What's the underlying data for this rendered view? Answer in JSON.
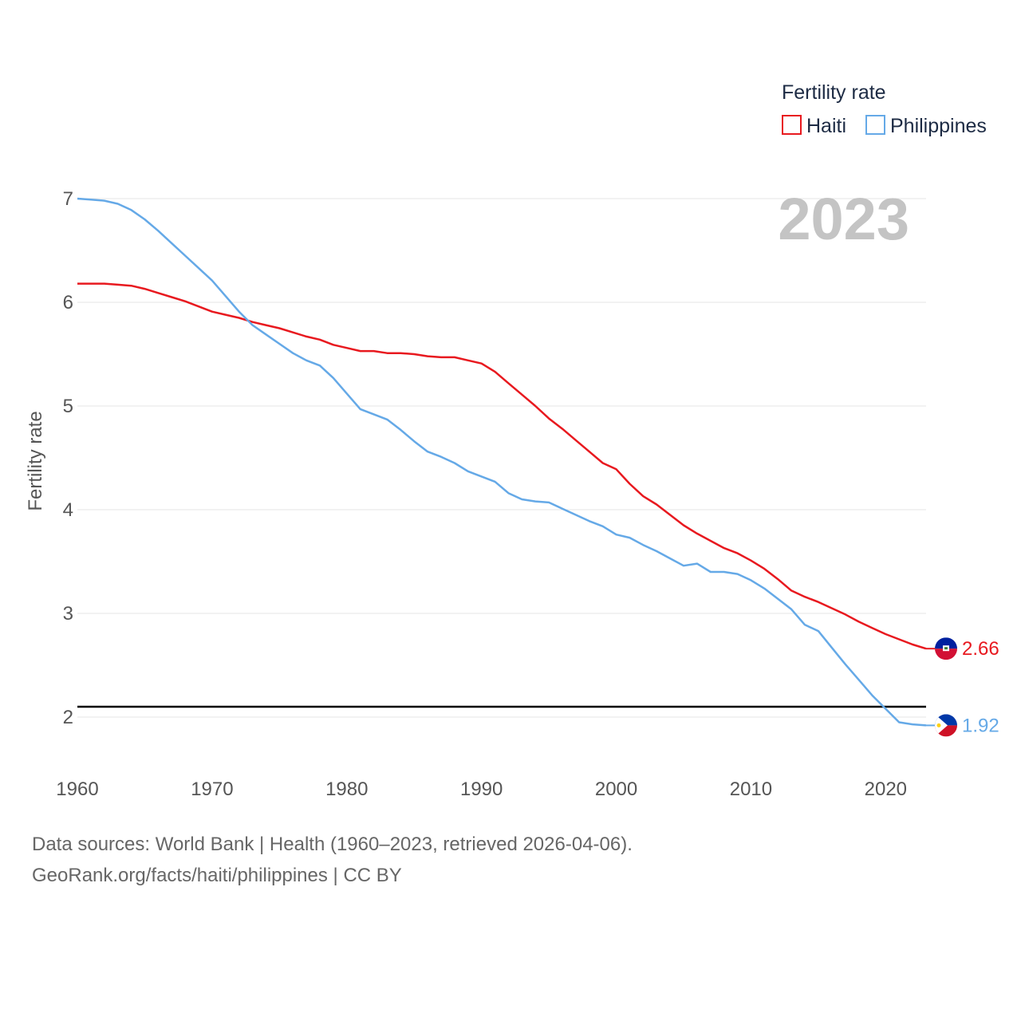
{
  "chart_data": {
    "type": "line",
    "title": "",
    "xlabel": "",
    "ylabel": "Fertility rate",
    "xlim": [
      1960,
      2023
    ],
    "ylim": [
      1.6,
      7.0
    ],
    "xticks": [
      1960,
      1970,
      1980,
      1990,
      2000,
      2010,
      2020
    ],
    "yticks": [
      2,
      3,
      4,
      5,
      6,
      7
    ],
    "grid": true,
    "legend": {
      "title": "Fertility rate",
      "position": "top-right"
    },
    "year_label": "2023",
    "reference_line": {
      "y": 2.1,
      "color": "#000000"
    },
    "x": [
      1960,
      1961,
      1962,
      1963,
      1964,
      1965,
      1966,
      1967,
      1968,
      1969,
      1970,
      1971,
      1972,
      1973,
      1974,
      1975,
      1976,
      1977,
      1978,
      1979,
      1980,
      1981,
      1982,
      1983,
      1984,
      1985,
      1986,
      1987,
      1988,
      1989,
      1990,
      1991,
      1992,
      1993,
      1994,
      1995,
      1996,
      1997,
      1998,
      1999,
      2000,
      2001,
      2002,
      2003,
      2004,
      2005,
      2006,
      2007,
      2008,
      2009,
      2010,
      2011,
      2012,
      2013,
      2014,
      2015,
      2016,
      2017,
      2018,
      2019,
      2020,
      2021,
      2022,
      2023
    ],
    "series": [
      {
        "name": "Haiti",
        "color": "#e8191f",
        "end_label": "2.66",
        "flag": "haiti-flag-icon",
        "values": [
          6.18,
          6.18,
          6.18,
          6.17,
          6.16,
          6.13,
          6.09,
          6.05,
          6.01,
          5.96,
          5.91,
          5.88,
          5.85,
          5.81,
          5.78,
          5.75,
          5.71,
          5.67,
          5.64,
          5.59,
          5.56,
          5.53,
          5.53,
          5.51,
          5.51,
          5.5,
          5.48,
          5.47,
          5.47,
          5.44,
          5.41,
          5.33,
          5.22,
          5.11,
          5.0,
          4.88,
          4.78,
          4.67,
          4.56,
          4.45,
          4.39,
          4.25,
          4.13,
          4.05,
          3.95,
          3.85,
          3.77,
          3.7,
          3.63,
          3.58,
          3.51,
          3.43,
          3.33,
          3.22,
          3.16,
          3.11,
          3.05,
          2.99,
          2.92,
          2.86,
          2.8,
          2.75,
          2.7,
          2.66
        ]
      },
      {
        "name": "Philippines",
        "color": "#65a9e7",
        "end_label": "1.92",
        "flag": "philippines-flag-icon",
        "values": [
          7.0,
          6.99,
          6.98,
          6.95,
          6.89,
          6.8,
          6.69,
          6.57,
          6.45,
          6.33,
          6.21,
          6.06,
          5.91,
          5.78,
          5.69,
          5.6,
          5.51,
          5.44,
          5.39,
          5.27,
          5.12,
          4.97,
          4.92,
          4.87,
          4.77,
          4.66,
          4.56,
          4.51,
          4.45,
          4.37,
          4.32,
          4.27,
          4.16,
          4.1,
          4.08,
          4.07,
          4.01,
          3.95,
          3.89,
          3.84,
          3.76,
          3.73,
          3.66,
          3.6,
          3.53,
          3.46,
          3.48,
          3.4,
          3.4,
          3.38,
          3.32,
          3.24,
          3.14,
          3.04,
          2.89,
          2.83,
          2.67,
          2.51,
          2.36,
          2.21,
          2.08,
          1.95,
          1.93,
          1.92
        ]
      }
    ]
  },
  "source": {
    "line1": "Data sources: World Bank | Health (1960–2023, retrieved 2026-04-06).",
    "line2": "GeoRank.org/facts/haiti/philippines | CC BY"
  }
}
